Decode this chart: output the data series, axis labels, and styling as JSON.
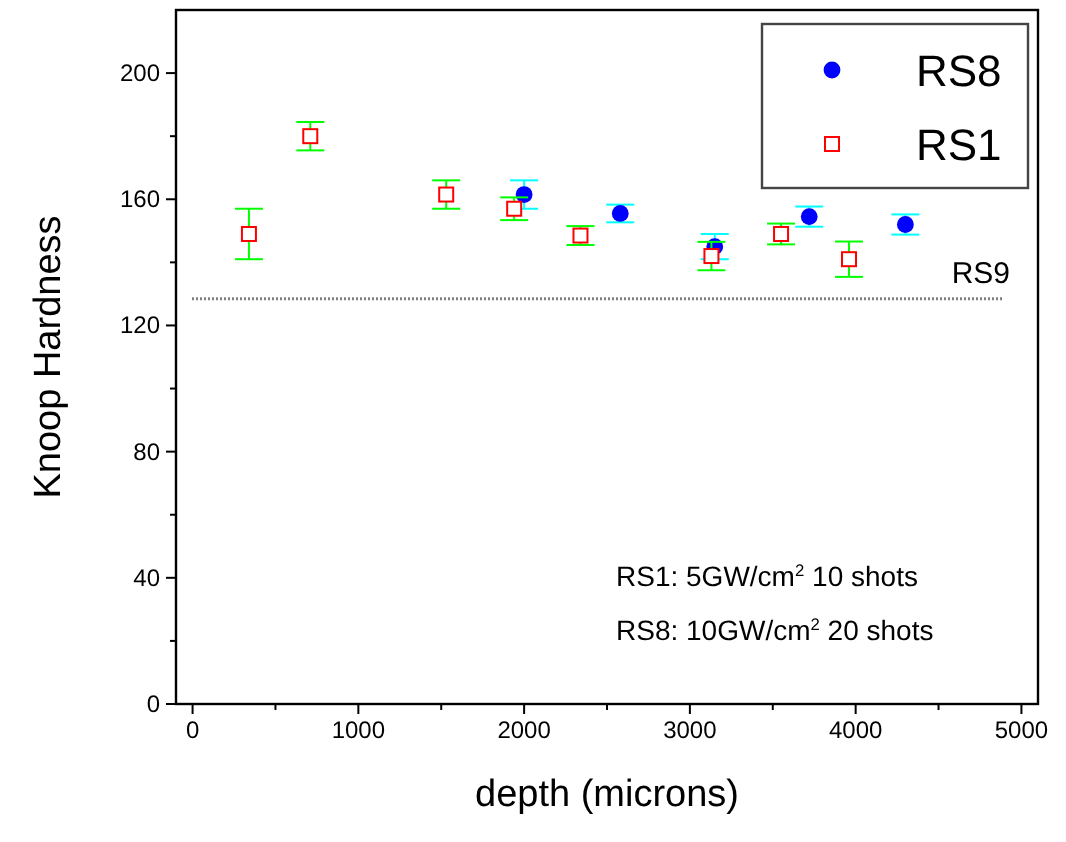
{
  "chart_data": {
    "type": "scatter",
    "xlabel": "depth (microns)",
    "ylabel": "Knoop Hardness",
    "xlim": [
      -100,
      5100
    ],
    "ylim": [
      0,
      220
    ],
    "xticks": [
      0,
      {
        "value": 500,
        "label": null
      },
      1000,
      {
        "value": 1500,
        "label": null
      },
      2000,
      {
        "value": 2500,
        "label": null
      },
      3000,
      {
        "value": 3500,
        "label": null
      },
      4000,
      {
        "value": 4500,
        "label": null
      },
      5000
    ],
    "yticks": [
      0,
      {
        "value": 20,
        "label": null
      },
      40,
      {
        "value": 60,
        "label": null
      },
      80,
      {
        "value": 100,
        "label": null
      },
      120,
      {
        "value": 140,
        "label": null
      },
      160,
      {
        "value": 180,
        "label": null
      },
      200
    ],
    "series": [
      {
        "name": "RS8",
        "color": "#0000ff",
        "marker": "circle",
        "x": [
          2000,
          2580,
          3150,
          3720,
          4300
        ],
        "values": [
          161.5,
          155.5,
          145,
          154.5,
          152
        ],
        "errors": [
          4.5,
          2.8,
          4,
          3.2,
          3.2
        ]
      },
      {
        "name": "RS1",
        "color": "#ff0000",
        "marker": "square",
        "x": [
          340,
          710,
          1530,
          1940,
          2340,
          3130,
          3550,
          3960
        ],
        "values": [
          149,
          180,
          161.5,
          157,
          148.5,
          142,
          149,
          141
        ],
        "errors": [
          8,
          4.5,
          4.5,
          3.6,
          3,
          4.5,
          3.3,
          5.6
        ]
      }
    ],
    "ref_lines": [
      {
        "axis": "y",
        "value": 128.5,
        "label": "RS9",
        "color": "#808080",
        "line_style": "dotted"
      }
    ],
    "legend": "top right",
    "annotations": [
      "RS1: 5GW/cm$^{2}$  10 shots",
      "RS8: 10GW/cm$^{2}$ 20 shots"
    ]
  }
}
